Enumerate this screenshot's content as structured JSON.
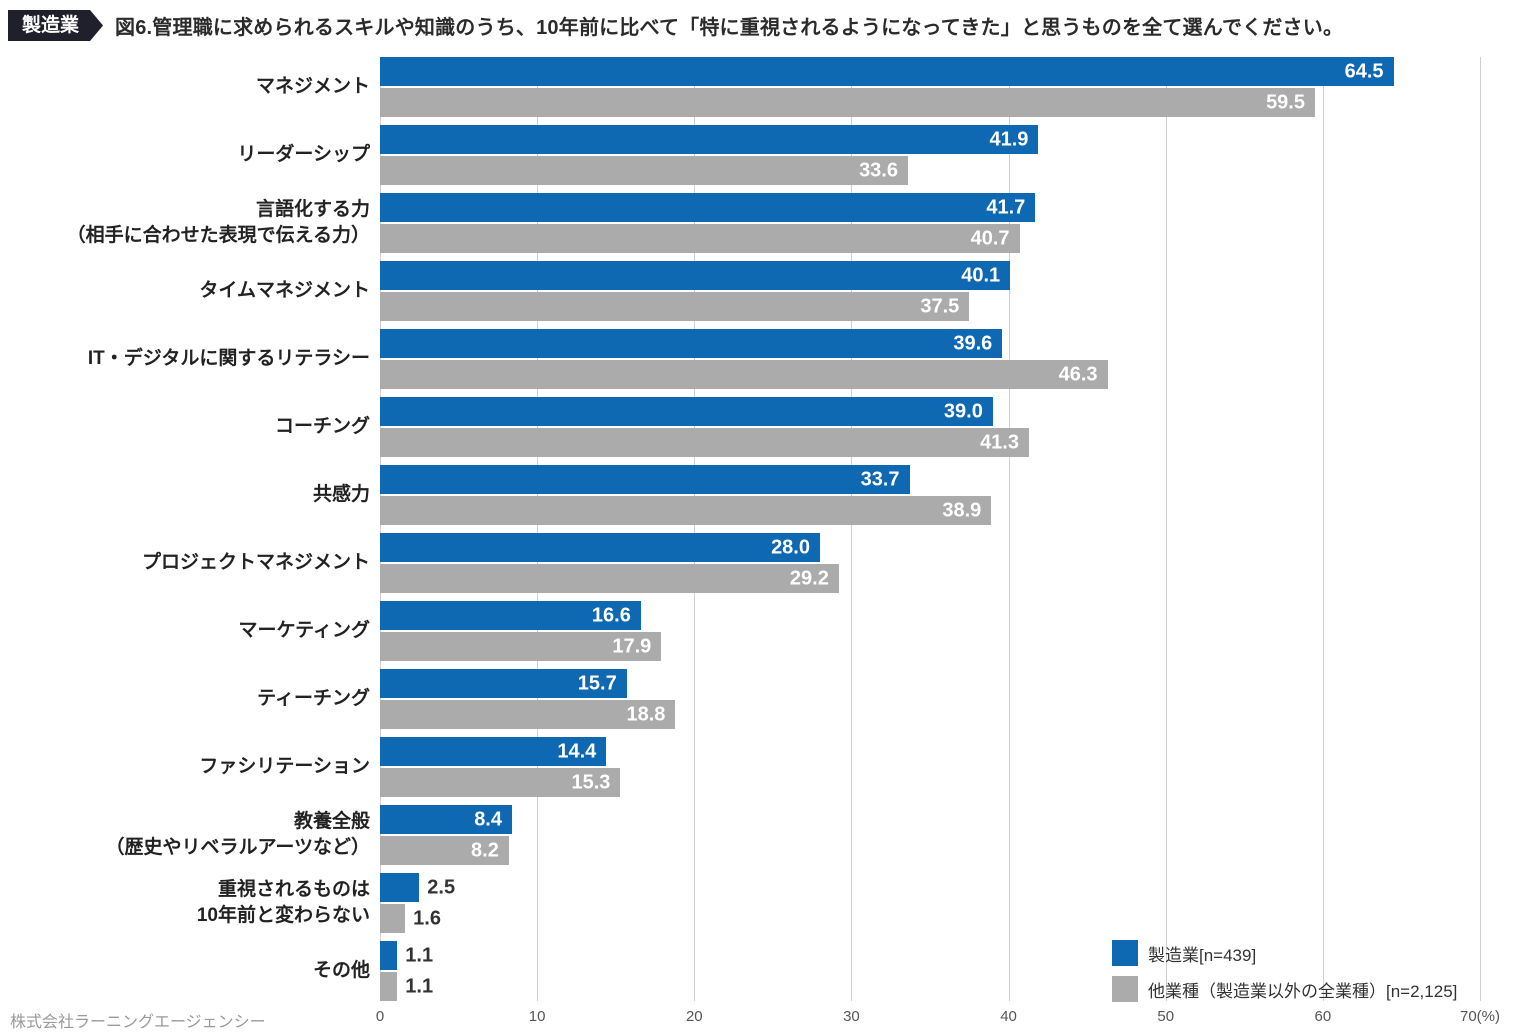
{
  "header": {
    "badge": "製造業",
    "title": "図6.管理職に求められるスキルや知識のうち、10年前に比べて「特に重視されるようになってきた」と思うものを全て選んでください。"
  },
  "chart_data": {
    "type": "bar",
    "orientation": "horizontal",
    "title": "図6.管理職に求められるスキルや知識のうち、10年前に比べて「特に重視されるようになってきた」と思うものを全て選んでください。",
    "categories": [
      [
        "マネジメント"
      ],
      [
        "リーダーシップ"
      ],
      [
        "言語化する力",
        "（相手に合わせた表現で伝える力）"
      ],
      [
        "タイムマネジメント"
      ],
      [
        "IT・デジタルに関するリテラシー"
      ],
      [
        "コーチング"
      ],
      [
        "共感力"
      ],
      [
        "プロジェクトマネジメント"
      ],
      [
        "マーケティング"
      ],
      [
        "ティーチング"
      ],
      [
        "ファシリテーション"
      ],
      [
        "教養全般",
        "（歴史やリベラルアーツなど）"
      ],
      [
        "重視されるものは",
        "10年前と変わらない"
      ],
      [
        "その他"
      ]
    ],
    "series": [
      {
        "name": "製造業[n=439]",
        "color": "#0F68B2",
        "values": [
          64.5,
          41.9,
          41.7,
          40.1,
          39.6,
          39.0,
          33.7,
          28.0,
          16.6,
          15.7,
          14.4,
          8.4,
          2.5,
          1.1
        ]
      },
      {
        "name": "他業種（製造業以外の全業種）[n=2,125]",
        "color": "#ABABAB",
        "values": [
          59.5,
          33.6,
          40.7,
          37.5,
          46.3,
          41.3,
          38.9,
          29.2,
          17.9,
          18.8,
          15.3,
          8.2,
          1.6,
          1.1
        ]
      }
    ],
    "xlim": [
      0,
      70
    ],
    "tick_labels": [
      "0",
      "10",
      "20",
      "30",
      "40",
      "50",
      "60",
      "70(%)"
    ],
    "grid": true,
    "legend_position": "bottom-right"
  },
  "footer": {
    "company": "株式会社ラーニングエージェンシー"
  }
}
